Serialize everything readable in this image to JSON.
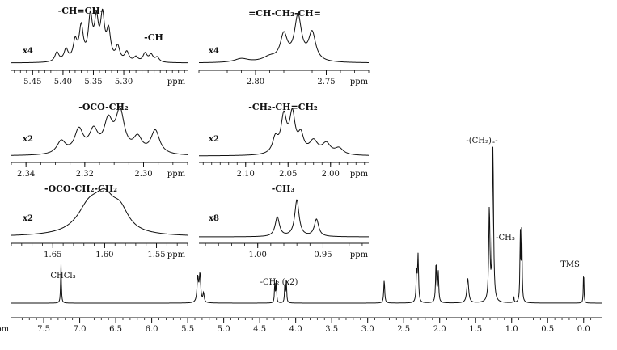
{
  "chart_data": [
    {
      "type": "line",
      "panel": "main",
      "xlabel": "ppm",
      "xlim": [
        7.95,
        -0.25
      ],
      "xticks": [
        7.5,
        7.0,
        6.5,
        6.0,
        5.5,
        5.0,
        4.5,
        4.0,
        3.5,
        3.0,
        2.5,
        2.0,
        1.5,
        1.0,
        0.5,
        0.0
      ],
      "xtick_labels": [
        "7.5",
        "7.0",
        "6.5",
        "6.0",
        "5.5",
        "5.0",
        "4.5",
        "4.0",
        "3.5",
        "3.0",
        "2.5",
        "2.0",
        "1.5",
        "1.0",
        "0.5",
        "0.0"
      ],
      "ylim": [
        0,
        1
      ],
      "peaks": [
        {
          "ppm": 7.26,
          "height": 0.26,
          "width": 0.006
        },
        {
          "ppm": 5.36,
          "height": 0.16,
          "width": 0.012
        },
        {
          "ppm": 5.33,
          "height": 0.18,
          "width": 0.012
        },
        {
          "ppm": 5.28,
          "height": 0.06,
          "width": 0.01
        },
        {
          "ppm": 4.29,
          "height": 0.13,
          "width": 0.006
        },
        {
          "ppm": 4.27,
          "height": 0.14,
          "width": 0.006
        },
        {
          "ppm": 4.15,
          "height": 0.13,
          "width": 0.006
        },
        {
          "ppm": 4.13,
          "height": 0.14,
          "width": 0.006
        },
        {
          "ppm": 2.77,
          "height": 0.15,
          "width": 0.008
        },
        {
          "ppm": 2.32,
          "height": 0.2,
          "width": 0.008
        },
        {
          "ppm": 2.3,
          "height": 0.3,
          "width": 0.008
        },
        {
          "ppm": 2.05,
          "height": 0.26,
          "width": 0.008
        },
        {
          "ppm": 2.02,
          "height": 0.2,
          "width": 0.008
        },
        {
          "ppm": 1.61,
          "height": 0.16,
          "width": 0.015
        },
        {
          "ppm": 1.31,
          "height": 0.6,
          "width": 0.01
        },
        {
          "ppm": 1.26,
          "height": 1.0,
          "width": 0.01
        },
        {
          "ppm": 0.97,
          "height": 0.04,
          "width": 0.005
        },
        {
          "ppm": 0.88,
          "height": 0.45,
          "width": 0.006
        },
        {
          "ppm": 0.86,
          "height": 0.5,
          "width": 0.006
        },
        {
          "ppm": 0.0,
          "height": 0.22,
          "width": 0.005
        }
      ],
      "annotations": [
        {
          "text": "CHCl₃",
          "ppm": 7.45
        },
        {
          "text": "-CH₂ (x2)",
          "ppm": 4.05
        },
        {
          "text": "-(CH₂)ₙ-",
          "ppm": 1.26
        },
        {
          "text": "-CH₃",
          "ppm": 0.87
        },
        {
          "text": "TMS",
          "ppm": 0.0
        }
      ]
    },
    {
      "type": "line",
      "panel": "inset",
      "title": "-CH=CH-",
      "scale": "x4",
      "xlabel": "ppm",
      "xlim": [
        5.485,
        5.195
      ],
      "xticks": [
        5.45,
        5.4,
        5.35,
        5.3
      ],
      "xtick_labels": [
        "5.45",
        "5.40",
        "5.35",
        "5.30"
      ],
      "sub_title": "-CH",
      "sub_title_ppm": 5.25,
      "peaks": [
        {
          "ppm": 5.41,
          "height": 0.2,
          "width": 0.004
        },
        {
          "ppm": 5.395,
          "height": 0.25,
          "width": 0.004
        },
        {
          "ppm": 5.38,
          "height": 0.4,
          "width": 0.004
        },
        {
          "ppm": 5.37,
          "height": 0.7,
          "width": 0.004
        },
        {
          "ppm": 5.355,
          "height": 0.9,
          "width": 0.004
        },
        {
          "ppm": 5.345,
          "height": 0.8,
          "width": 0.004
        },
        {
          "ppm": 5.335,
          "height": 0.9,
          "width": 0.004
        },
        {
          "ppm": 5.325,
          "height": 0.6,
          "width": 0.004
        },
        {
          "ppm": 5.31,
          "height": 0.3,
          "width": 0.004
        },
        {
          "ppm": 5.295,
          "height": 0.2,
          "width": 0.004
        },
        {
          "ppm": 5.28,
          "height": 0.1,
          "width": 0.004
        },
        {
          "ppm": 5.265,
          "height": 0.18,
          "width": 0.004
        },
        {
          "ppm": 5.255,
          "height": 0.15,
          "width": 0.004
        },
        {
          "ppm": 5.245,
          "height": 0.1,
          "width": 0.004
        }
      ]
    },
    {
      "type": "line",
      "panel": "inset",
      "title": "=CH-CH₂-CH=",
      "scale": "x4",
      "xlabel": "ppm",
      "xlim": [
        2.84,
        2.72
      ],
      "xticks": [
        2.8,
        2.75
      ],
      "xtick_labels": [
        "2.80",
        "2.75"
      ],
      "peaks": [
        {
          "ppm": 2.81,
          "height": 0.08,
          "width": 0.006
        },
        {
          "ppm": 2.79,
          "height": 0.1,
          "width": 0.006
        },
        {
          "ppm": 2.78,
          "height": 0.55,
          "width": 0.003
        },
        {
          "ppm": 2.77,
          "height": 0.95,
          "width": 0.003
        },
        {
          "ppm": 2.76,
          "height": 0.6,
          "width": 0.003
        }
      ]
    },
    {
      "type": "line",
      "panel": "inset",
      "title": "-OCO-CH₂",
      "scale": "x2",
      "xlabel": "ppm",
      "xlim": [
        2.345,
        2.285
      ],
      "xticks": [
        2.34,
        2.32,
        2.3
      ],
      "xtick_labels": [
        "2.34",
        "2.32",
        "2.30"
      ],
      "peaks": [
        {
          "ppm": 2.328,
          "height": 0.3,
          "width": 0.0018
        },
        {
          "ppm": 2.322,
          "height": 0.55,
          "width": 0.0018
        },
        {
          "ppm": 2.317,
          "height": 0.5,
          "width": 0.0018
        },
        {
          "ppm": 2.312,
          "height": 0.7,
          "width": 0.0018
        },
        {
          "ppm": 2.308,
          "height": 0.95,
          "width": 0.0018
        },
        {
          "ppm": 2.302,
          "height": 0.35,
          "width": 0.0018
        },
        {
          "ppm": 2.296,
          "height": 0.55,
          "width": 0.0018
        }
      ]
    },
    {
      "type": "line",
      "panel": "inset",
      "title": "-CH₂-CH=CH₂",
      "scale": "x2",
      "xlabel": "ppm",
      "xlim": [
        2.155,
        1.955
      ],
      "xticks": [
        2.1,
        2.05,
        2.0
      ],
      "xtick_labels": [
        "2.10",
        "2.05",
        "2.00"
      ],
      "peaks": [
        {
          "ppm": 2.065,
          "height": 0.35,
          "width": 0.004
        },
        {
          "ppm": 2.055,
          "height": 0.85,
          "width": 0.004
        },
        {
          "ppm": 2.045,
          "height": 0.9,
          "width": 0.004
        },
        {
          "ppm": 2.035,
          "height": 0.4,
          "width": 0.004
        },
        {
          "ppm": 2.02,
          "height": 0.3,
          "width": 0.006
        },
        {
          "ppm": 2.005,
          "height": 0.25,
          "width": 0.006
        },
        {
          "ppm": 1.99,
          "height": 0.15,
          "width": 0.006
        }
      ]
    },
    {
      "type": "line",
      "panel": "inset",
      "title": "-OCO-CH₂-CH₂",
      "scale": "x2",
      "xlabel": "ppm",
      "xlim": [
        1.69,
        1.52
      ],
      "xticks": [
        1.65,
        1.6,
        1.55
      ],
      "xtick_labels": [
        "1.65",
        "1.60",
        "1.55"
      ],
      "peaks": [
        {
          "ppm": 1.615,
          "height": 0.6,
          "width": 0.014
        },
        {
          "ppm": 1.6,
          "height": 0.7,
          "width": 0.012
        },
        {
          "ppm": 1.585,
          "height": 0.45,
          "width": 0.01
        }
      ]
    },
    {
      "type": "line",
      "panel": "inset",
      "title": "-CH₃",
      "scale": "x8",
      "xlabel": "ppm",
      "xlim": [
        1.045,
        0.915
      ],
      "xticks": [
        1.0,
        0.95
      ],
      "xtick_labels": [
        "1.00",
        "0.95"
      ],
      "peaks": [
        {
          "ppm": 0.985,
          "height": 0.45,
          "width": 0.002
        },
        {
          "ppm": 0.97,
          "height": 0.85,
          "width": 0.002
        },
        {
          "ppm": 0.955,
          "height": 0.4,
          "width": 0.002
        }
      ]
    }
  ]
}
